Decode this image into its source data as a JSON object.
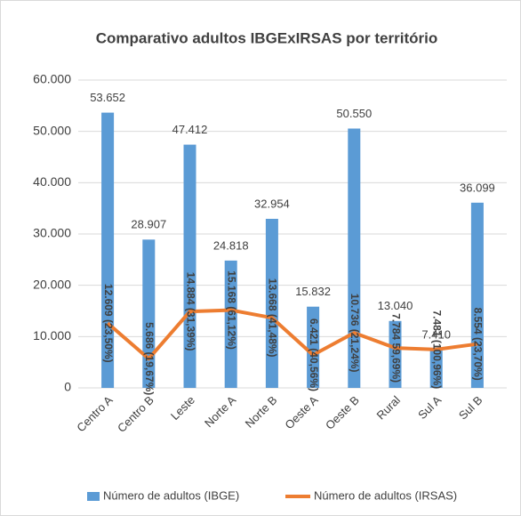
{
  "chart_data": {
    "type": "bar-line",
    "title": "Comparativo adultos IBGExIRSAS por território",
    "categories": [
      "Centro A",
      "Centro B",
      "Leste",
      "Norte A",
      "Norte B",
      "Oeste A",
      "Oeste B",
      "Rural",
      "Sul A",
      "Sul B"
    ],
    "series": [
      {
        "name": "Número de adultos (IBGE)",
        "type": "bar",
        "color": "#5b9bd5",
        "values": [
          53652,
          28907,
          47412,
          24818,
          32954,
          15832,
          50550,
          13040,
          7410,
          36099
        ],
        "value_labels": [
          "53.652",
          "28.907",
          "47.412",
          "24.818",
          "32.954",
          "15.832",
          "50.550",
          "13.040",
          "7.410",
          "36.099"
        ]
      },
      {
        "name": "Número de adultos (IRSAS)",
        "type": "line",
        "color": "#ed7d31",
        "values": [
          12609,
          5686,
          14884,
          15168,
          13668,
          6421,
          10736,
          7784,
          7481,
          8554
        ],
        "value_labels": [
          "12.609 (23,50%)",
          "5.686 (19,67%)",
          "14.884 (31,39%)",
          "15.168 (61,12%)",
          "13.668 (41,48%)",
          "6.421 (40,56%)",
          "10.736 (21,24%)",
          "7.784 59,69%)",
          "7.481 (100,96%)",
          "8.554 (23,70%)"
        ]
      }
    ],
    "ylim": [
      0,
      60000
    ],
    "yticks": [
      0,
      {
        "value": 10000,
        "label": "10.000"
      },
      {
        "value": 20000,
        "label": "20.000"
      },
      {
        "value": 30000,
        "label": "30.000"
      },
      {
        "value": 40000,
        "label": "40.000"
      },
      {
        "value": 50000,
        "label": "50.000"
      },
      {
        "value": 60000,
        "label": "60.000"
      }
    ],
    "grid": true,
    "legend": "bottom"
  }
}
